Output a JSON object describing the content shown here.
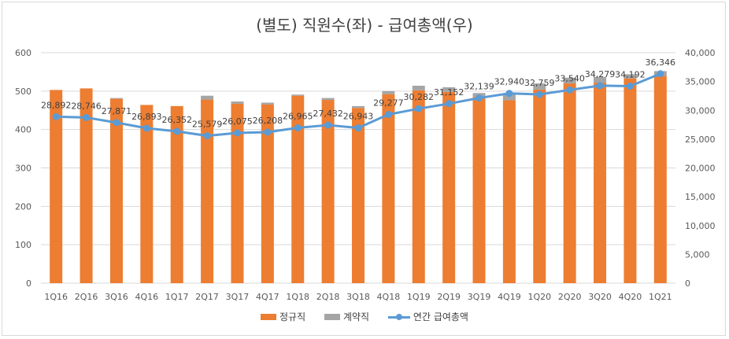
{
  "chart_data": {
    "type": "bar",
    "title": "(별도) 직원수(좌) - 급여총액(우)",
    "categories": [
      "1Q16",
      "2Q16",
      "3Q16",
      "4Q16",
      "1Q17",
      "2Q17",
      "3Q17",
      "4Q17",
      "1Q18",
      "2Q18",
      "3Q18",
      "4Q18",
      "1Q19",
      "2Q19",
      "3Q19",
      "4Q19",
      "1Q20",
      "2Q20",
      "3Q20",
      "4Q20",
      "1Q21"
    ],
    "series": [
      {
        "name": "정규직",
        "type": "bar",
        "axis": "left",
        "color": "#ed7d31",
        "values": [
          503,
          507,
          480,
          464,
          461,
          478,
          467,
          465,
          488,
          477,
          456,
          492,
          502,
          498,
          485,
          476,
          504,
          520,
          522,
          533,
          540
        ]
      },
      {
        "name": "계약직",
        "type": "bar",
        "axis": "left",
        "color": "#a5a5a5",
        "values": [
          0,
          0,
          2,
          0,
          0,
          10,
          6,
          5,
          3,
          5,
          5,
          8,
          12,
          12,
          10,
          16,
          16,
          15,
          15,
          11,
          12
        ]
      },
      {
        "name": "연간 급여총액",
        "type": "line",
        "axis": "right",
        "color": "#5b9bd5",
        "values": [
          28892,
          28746,
          27871,
          26893,
          26352,
          25579,
          26075,
          26208,
          26965,
          27432,
          26943,
          29277,
          30282,
          31152,
          32139,
          32940,
          32759,
          33540,
          34279,
          34192,
          36346
        ],
        "labels": [
          "28,892",
          "28,746",
          "27,871",
          "26,893",
          "26,352",
          "25,579",
          "26,075",
          "26,208",
          "26,965",
          "27,432",
          "26,943",
          "29,277",
          "30,282",
          "31,152",
          "32,139",
          "32,940",
          "32,759",
          "33,540",
          "34,279",
          "34,192",
          "36,346"
        ]
      }
    ],
    "ylim_left": [
      0,
      600
    ],
    "ylim_right": [
      0,
      40000
    ],
    "yticks_left": [
      "0",
      "100",
      "200",
      "300",
      "400",
      "500",
      "600"
    ],
    "yticks_right": [
      "0",
      "5,000",
      "10,000",
      "15,000",
      "20,000",
      "25,000",
      "30,000",
      "35,000",
      "40,000"
    ],
    "grid": true,
    "legend": "bottom"
  }
}
